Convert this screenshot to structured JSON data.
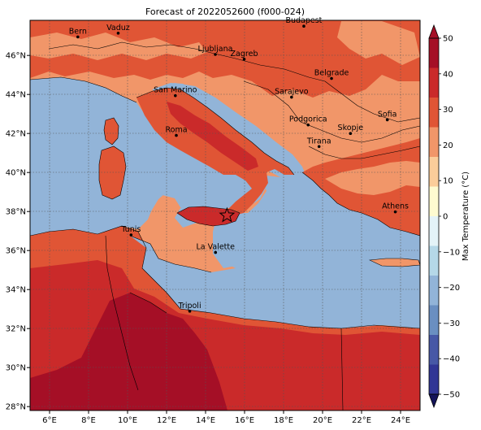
{
  "title": "Forecast of 2022052600 (f000-024)",
  "map": {
    "lon_range": [
      5,
      25
    ],
    "lat_range": [
      27.8,
      47.8
    ],
    "colors": {
      "sea": "#92b4d8",
      "c20_30": "#f19669",
      "c30_40": "#e05535",
      "c40_50": "#ca2a2a",
      "c50plus": "#a50f26",
      "border": "#000000"
    },
    "x_ticks": [
      {
        "value": 6,
        "label": "6°E"
      },
      {
        "value": 8,
        "label": "8°E"
      },
      {
        "value": 10,
        "label": "10°E"
      },
      {
        "value": 12,
        "label": "12°E"
      },
      {
        "value": 14,
        "label": "14°E"
      },
      {
        "value": 16,
        "label": "16°E"
      },
      {
        "value": 18,
        "label": "18°E"
      },
      {
        "value": 20,
        "label": "20°E"
      },
      {
        "value": 22,
        "label": "22°E"
      },
      {
        "value": 24,
        "label": "24°E"
      }
    ],
    "y_ticks": [
      {
        "value": 28,
        "label": "28°N"
      },
      {
        "value": 30,
        "label": "30°N"
      },
      {
        "value": 32,
        "label": "32°N"
      },
      {
        "value": 34,
        "label": "34°N"
      },
      {
        "value": 36,
        "label": "36°N"
      },
      {
        "value": 38,
        "label": "38°N"
      },
      {
        "value": 40,
        "label": "40°N"
      },
      {
        "value": 42,
        "label": "42°N"
      },
      {
        "value": 44,
        "label": "44°N"
      },
      {
        "value": 46,
        "label": "46°N"
      }
    ],
    "cities": [
      {
        "name": "Bern",
        "lon": 7.45,
        "lat": 46.95
      },
      {
        "name": "Vaduz",
        "lon": 9.52,
        "lat": 47.14
      },
      {
        "name": "Budapest",
        "lon": 19.04,
        "lat": 47.5
      },
      {
        "name": "Ljubljana",
        "lon": 14.5,
        "lat": 46.05
      },
      {
        "name": "Zagreb",
        "lon": 15.98,
        "lat": 45.81
      },
      {
        "name": "Belgrade",
        "lon": 20.46,
        "lat": 44.82
      },
      {
        "name": "San Marino",
        "lon": 12.45,
        "lat": 43.94
      },
      {
        "name": "Sarajevo",
        "lon": 18.41,
        "lat": 43.86
      },
      {
        "name": "Sofia",
        "lon": 23.32,
        "lat": 42.7
      },
      {
        "name": "Podgorica",
        "lon": 19.26,
        "lat": 42.44
      },
      {
        "name": "Skopje",
        "lon": 21.43,
        "lat": 42.0
      },
      {
        "name": "Roma",
        "lon": 12.5,
        "lat": 41.9
      },
      {
        "name": "Tirana",
        "lon": 19.82,
        "lat": 41.33
      },
      {
        "name": "Athens",
        "lon": 23.73,
        "lat": 37.98
      },
      {
        "name": "Tunis",
        "lon": 10.18,
        "lat": 36.8
      },
      {
        "name": "La Valette",
        "lon": 14.51,
        "lat": 35.9
      },
      {
        "name": "Tripoli",
        "lon": 13.19,
        "lat": 32.89
      }
    ],
    "marker": {
      "symbol": "star",
      "lon": 15.1,
      "lat": 37.8
    }
  },
  "colorbar": {
    "label": "Max Temperature (°C)",
    "ticks": [
      "50",
      "40",
      "30",
      "20",
      "10",
      "0",
      "−10",
      "−20",
      "−30",
      "−40",
      "−50"
    ],
    "bands": [
      "#a50f26",
      "#ca2a2a",
      "#e05535",
      "#f19669",
      "#fbcd9a",
      "#fefbd0",
      "#e4f3f8",
      "#b5d8e8",
      "#92b4d8",
      "#6a8fc1",
      "#4758a6",
      "#313695"
    ]
  }
}
